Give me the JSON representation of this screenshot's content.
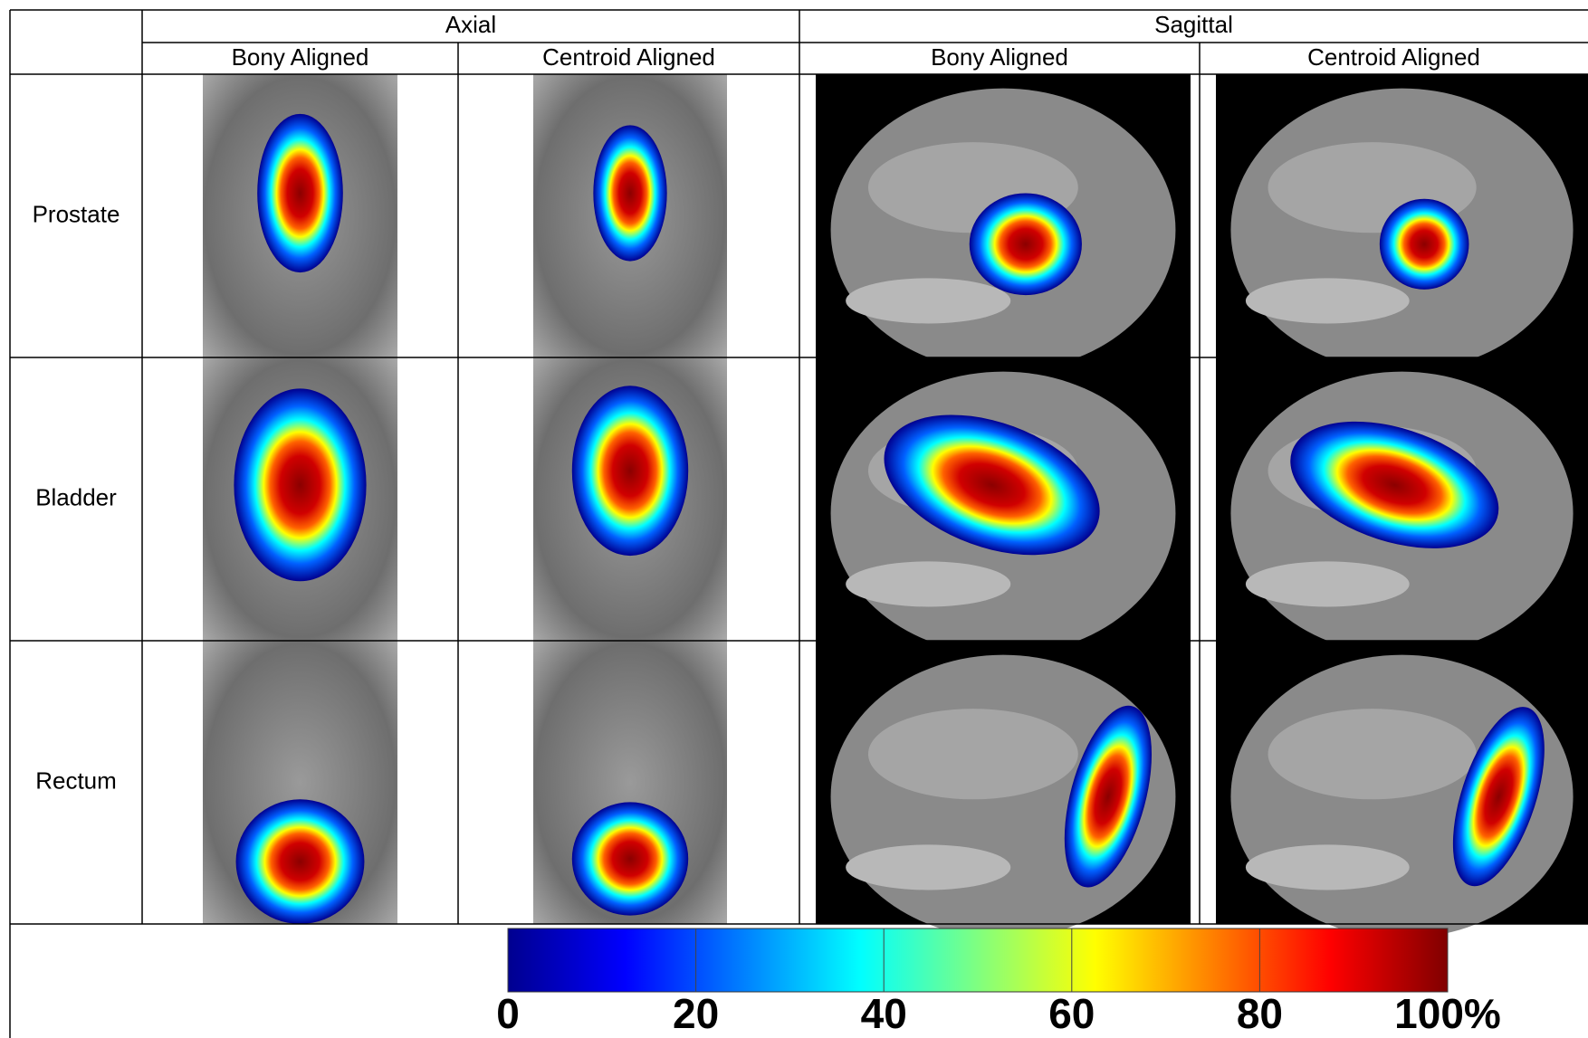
{
  "table": {
    "groups": [
      "Axial",
      "Sagittal"
    ],
    "columns": [
      "Bony Aligned",
      "Centroid Aligned",
      "Bony Aligned",
      "Centroid Aligned"
    ],
    "rows": [
      "Prostate",
      "Bladder",
      "Rectum"
    ]
  },
  "colorbar": {
    "lim": [
      0,
      100
    ],
    "ticks": [
      0,
      20,
      40,
      60,
      80,
      {
        "value": 100,
        "label": "100%"
      }
    ]
  }
}
